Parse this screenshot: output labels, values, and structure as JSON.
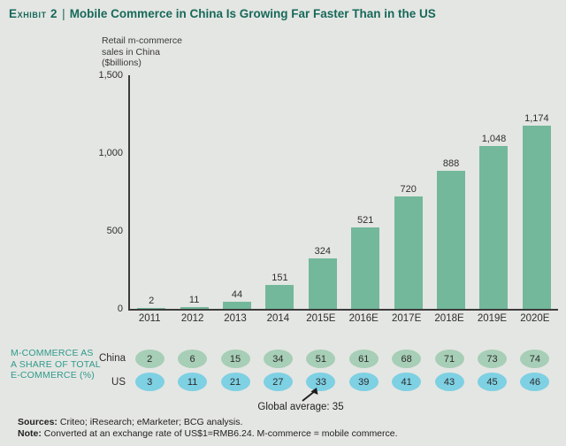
{
  "title": {
    "exhibit": "Exhibit 2",
    "separator": "|",
    "text": "Mobile Commerce in China Is Growing Far Faster Than in the US"
  },
  "chart_data": [
    {
      "type": "bar",
      "title": "Retail m-commerce sales in China ($billions)",
      "ylabel": "Retail m-commerce\nsales in China\n($billions)",
      "categories": [
        "2011",
        "2012",
        "2013",
        "2014",
        "2015E",
        "2016E",
        "2017E",
        "2018E",
        "2019E",
        "2020E"
      ],
      "values": [
        2,
        11,
        44,
        151,
        324,
        521,
        720,
        888,
        1048,
        1174
      ],
      "value_labels": [
        "2",
        "11",
        "44",
        "151",
        "324",
        "521",
        "720",
        "888",
        "1,048",
        "1,174"
      ],
      "ylim": [
        0,
        1500
      ],
      "yticks": [
        0,
        500,
        1000,
        1500
      ],
      "ytick_labels": [
        "0",
        "500",
        "1,000",
        "1,500"
      ],
      "grid": false,
      "legend": "none",
      "bar_color": "#73b89b"
    },
    {
      "type": "table",
      "label": "M-COMMERCE AS\nA SHARE OF TOTAL\nE-COMMERCE (%)",
      "columns": [
        "2011",
        "2012",
        "2013",
        "2014",
        "2015E",
        "2016E",
        "2017E",
        "2018E",
        "2019E",
        "2020E"
      ],
      "rows": [
        {
          "name": "China",
          "values": [
            2,
            6,
            15,
            34,
            51,
            61,
            68,
            71,
            73,
            74
          ],
          "bubble_color": "#a7ceb6"
        },
        {
          "name": "US",
          "values": [
            3,
            11,
            21,
            27,
            33,
            39,
            41,
            43,
            45,
            46
          ],
          "bubble_color": "#7ed0e3"
        }
      ],
      "annotation": "Global average: 35",
      "annotation_value": 35
    }
  ],
  "footer": {
    "sources_label": "Sources:",
    "sources_text": "Criteo; iResearch; eMarketer; BCG analysis.",
    "note_label": "Note:",
    "note_text": "Converted at an exchange rate of US$1=RMB6.24. M-commerce = mobile commerce."
  },
  "colors": {
    "background": "#e4e6e3",
    "title_green": "#17695a",
    "bar_green": "#73b89b",
    "share_label_teal": "#2f9a8c",
    "china_bubble": "#a7ceb6",
    "us_bubble": "#7ed0e3",
    "axis": "#3c3c3c",
    "text": "#2e2e2e"
  }
}
